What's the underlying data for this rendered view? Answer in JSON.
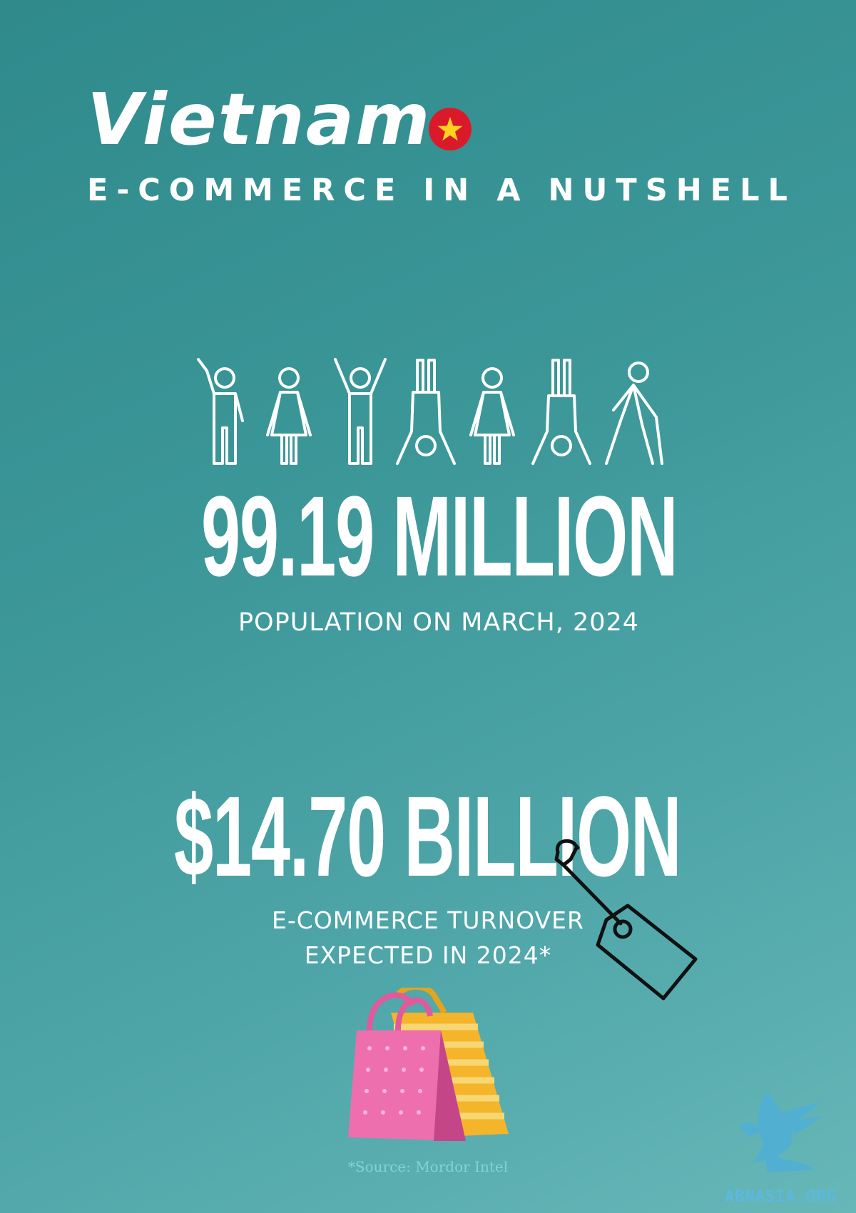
{
  "header": {
    "title": "Vietnam",
    "subtitle": "E-COMMERCE IN A NUTSHELL",
    "flag_icon": "vietnam-flag-icon",
    "flag_color": "#da1a2a",
    "star_color": "#ffd21f"
  },
  "population": {
    "icon": "people-figures-icon",
    "value": "99.19 MILLION",
    "label": "POPULATION ON MARCH, 2024"
  },
  "ecommerce": {
    "value": "$14.70 BILLION",
    "label_line1": "E-COMMERCE TURNOVER",
    "label_line2": "EXPECTED IN 2024*",
    "tag_icon": "price-tag-icon",
    "bags_icon": "shopping-bags-icon"
  },
  "footer": {
    "source": "*Source: Mordor Intel",
    "logo_icon": "griffin-logo-icon",
    "logo_text": "ABNASIA.ORG"
  }
}
